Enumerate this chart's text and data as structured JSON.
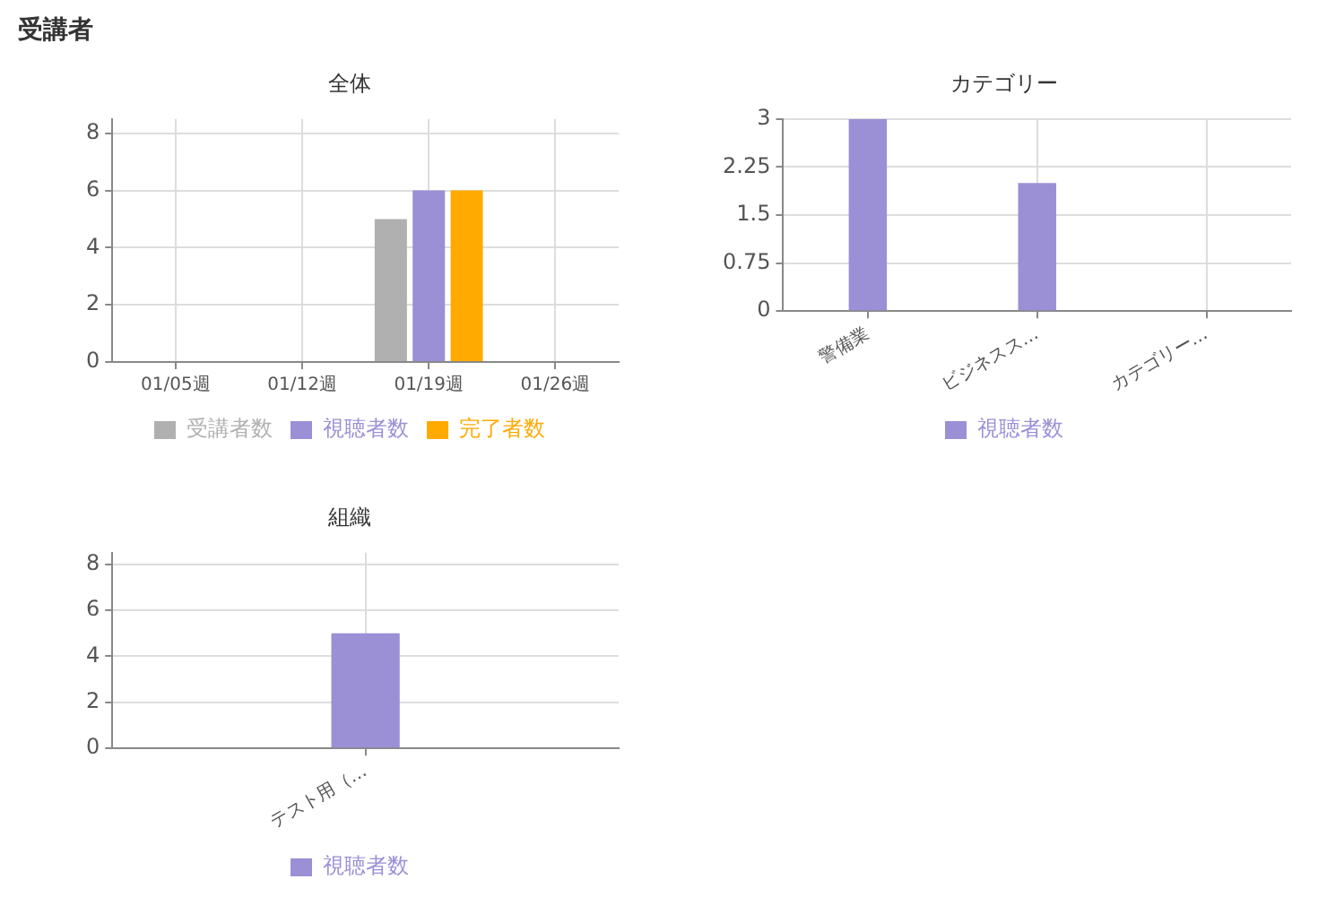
{
  "chart_data": [
    {
      "type": "bar",
      "title": "全体",
      "annotations": [
        "受講者"
      ],
      "categories": [
        "01/05週",
        "01/12週",
        "01/19週",
        "01/26週"
      ],
      "series": [
        {
          "name": "受講者数",
          "color": "#b0b0b0",
          "values": [
            0,
            0,
            5,
            0
          ]
        },
        {
          "name": "視聴者数",
          "color": "#9b8fd6",
          "values": [
            0,
            0,
            6,
            0
          ]
        },
        {
          "name": "完了者数",
          "color": "#ffaa00",
          "values": [
            0,
            0,
            6,
            0
          ]
        }
      ],
      "ylim": [
        0,
        8.5
      ],
      "yticks": [
        0,
        2,
        4,
        6,
        8
      ],
      "grid": true,
      "legend": "bottom"
    },
    {
      "type": "bar",
      "title": "カテゴリー",
      "categories": [
        "警備業",
        "ビジネスス…",
        "カテゴリー…"
      ],
      "series": [
        {
          "name": "視聴者数",
          "color": "#9b8fd6",
          "values": [
            3,
            2,
            0
          ]
        }
      ],
      "ylim": [
        0,
        3
      ],
      "yticks": [
        0,
        0.75,
        1.5,
        2.25,
        3
      ],
      "grid": true,
      "legend": "bottom"
    },
    {
      "type": "bar",
      "title": "組織",
      "categories": [
        "テスト用（…"
      ],
      "series": [
        {
          "name": "視聴者数",
          "color": "#9b8fd6",
          "values": [
            5
          ]
        }
      ],
      "ylim": [
        0,
        8.5
      ],
      "yticks": [
        0,
        2,
        4,
        6,
        8
      ],
      "grid": true,
      "legend": "bottom"
    }
  ]
}
